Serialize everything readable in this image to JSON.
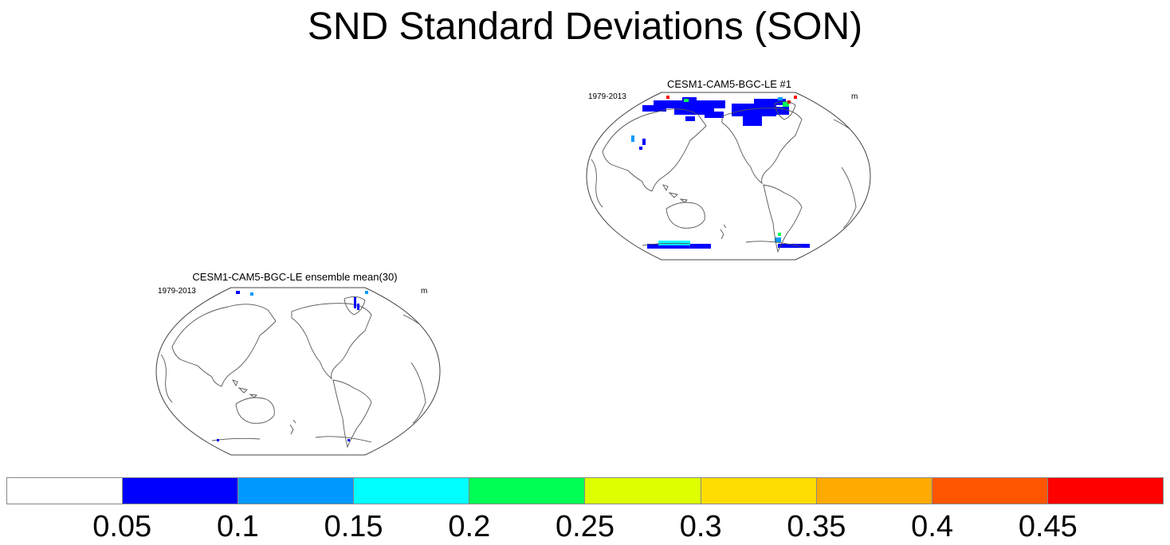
{
  "title": "SND Standard Deviations (SON)",
  "panels": [
    {
      "id": "ensemble-mean",
      "title": "CESM1-CAM5-BGC-LE ensemble mean(30)",
      "left_label": "1979-2013",
      "right_label": "m"
    },
    {
      "id": "member-1",
      "title": "CESM1-CAM5-BGC-LE #1",
      "left_label": "1979-2013",
      "right_label": "m"
    }
  ],
  "colorbar": {
    "colors": [
      "#ffffff",
      "#0000ff",
      "#0099ff",
      "#00ffff",
      "#00ff55",
      "#ddff00",
      "#ffdd00",
      "#ffaa00",
      "#ff5500",
      "#ff0000"
    ],
    "labels": [
      "0.05",
      "0.1",
      "0.15",
      "0.2",
      "0.25",
      "0.3",
      "0.35",
      "0.4",
      "0.45"
    ]
  }
}
